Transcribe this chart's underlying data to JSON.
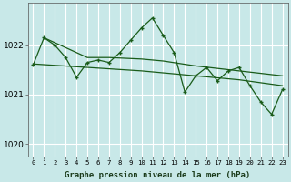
{
  "bg_color": "#c8e8e8",
  "grid_color": "#ffffff",
  "line_color": "#1a5c1a",
  "xlabel": "Graphe pression niveau de la mer (hPa)",
  "ylim": [
    1019.75,
    1022.85
  ],
  "xlim": [
    -0.5,
    23.5
  ],
  "yticks": [
    1020,
    1021,
    1022
  ],
  "xticks": [
    0,
    1,
    2,
    3,
    4,
    5,
    6,
    7,
    8,
    9,
    10,
    11,
    12,
    13,
    14,
    15,
    16,
    17,
    18,
    19,
    20,
    21,
    22,
    23
  ],
  "main_y": [
    1021.6,
    1022.15,
    1022.0,
    1021.75,
    1021.35,
    1021.65,
    1021.7,
    1021.65,
    1021.85,
    1022.1,
    1022.35,
    1022.55,
    1022.2,
    1021.85,
    1021.05,
    1021.38,
    1021.55,
    1021.28,
    1021.48,
    1021.55,
    1021.18,
    1020.85,
    1020.6,
    1021.1
  ],
  "upper_trend_x": [
    1,
    5,
    7,
    10,
    12,
    15,
    19,
    23
  ],
  "upper_trend_y": [
    1022.15,
    1021.75,
    1021.75,
    1021.72,
    1021.68,
    1021.58,
    1021.48,
    1021.38
  ],
  "lower_trend_x": [
    0,
    5,
    10,
    15,
    19,
    23
  ],
  "lower_trend_y": [
    1021.62,
    1021.55,
    1021.48,
    1021.38,
    1021.3,
    1021.18
  ],
  "xlabel_color": "#1a3a1a",
  "xlabel_fontsize": 6.5,
  "ytick_fontsize": 6.5,
  "xtick_fontsize": 5.2
}
